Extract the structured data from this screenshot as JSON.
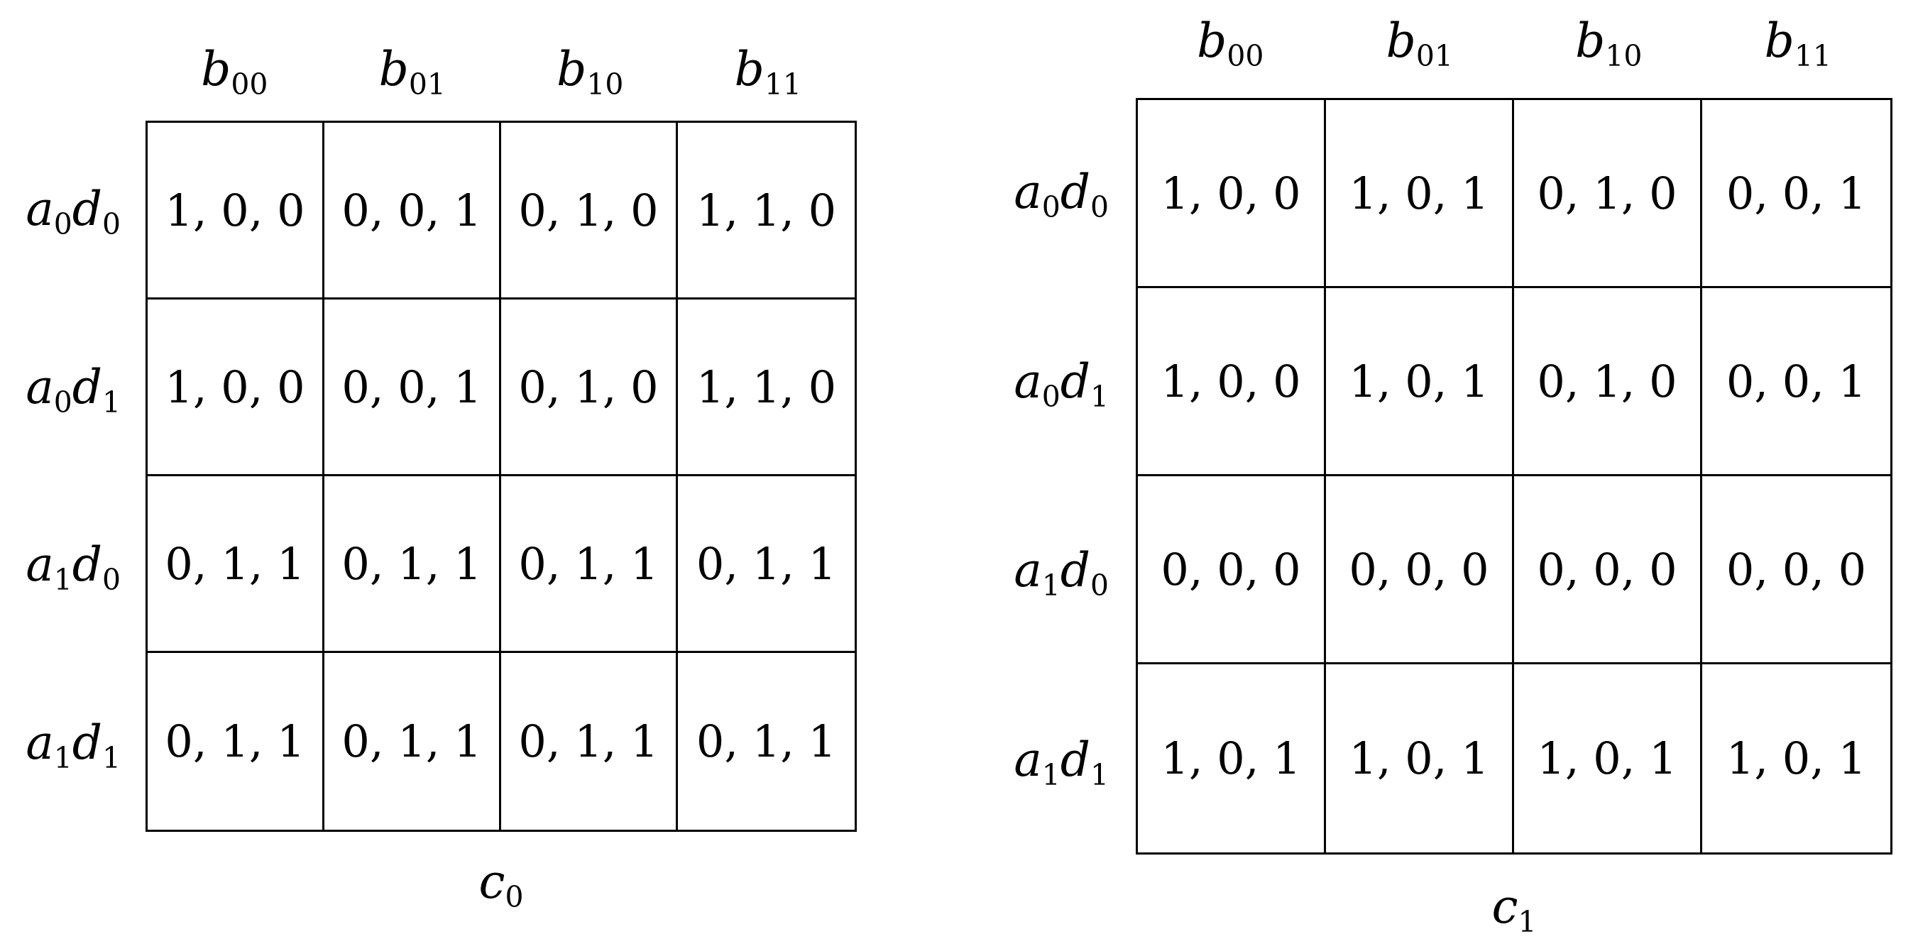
{
  "matrices": [
    {
      "caption": "c",
      "caption_sub": "0",
      "col_headers": [
        {
          "base": "b",
          "sub": "00"
        },
        {
          "base": "b",
          "sub": "01"
        },
        {
          "base": "b",
          "sub": "10"
        },
        {
          "base": "b",
          "sub": "11"
        }
      ],
      "row_headers": [
        {
          "a": "a",
          "a_sub": "0",
          "d": "d",
          "d_sub": "0"
        },
        {
          "a": "a",
          "a_sub": "0",
          "d": "d",
          "d_sub": "1"
        },
        {
          "a": "a",
          "a_sub": "1",
          "d": "d",
          "d_sub": "0"
        },
        {
          "a": "a",
          "a_sub": "1",
          "d": "d",
          "d_sub": "1"
        }
      ],
      "cells": [
        [
          "1, 0, 0",
          "0, 0, 1",
          "0, 1, 0",
          "1, 1, 0"
        ],
        [
          "1, 0, 0",
          "0, 0, 1",
          "0, 1, 0",
          "1, 1, 0"
        ],
        [
          "0, 1, 1",
          "0, 1, 1",
          "0, 1, 1",
          "0, 1, 1"
        ],
        [
          "0, 1, 1",
          "0, 1, 1",
          "0, 1, 1",
          "0, 1, 1"
        ]
      ]
    },
    {
      "caption": "c",
      "caption_sub": "1",
      "col_headers": [
        {
          "base": "b",
          "sub": "00"
        },
        {
          "base": "b",
          "sub": "01"
        },
        {
          "base": "b",
          "sub": "10"
        },
        {
          "base": "b",
          "sub": "11"
        }
      ],
      "row_headers": [
        {
          "a": "a",
          "a_sub": "0",
          "d": "d",
          "d_sub": "0"
        },
        {
          "a": "a",
          "a_sub": "0",
          "d": "d",
          "d_sub": "1"
        },
        {
          "a": "a",
          "a_sub": "1",
          "d": "d",
          "d_sub": "0"
        },
        {
          "a": "a",
          "a_sub": "1",
          "d": "d",
          "d_sub": "1"
        }
      ],
      "cells": [
        [
          "1, 0, 0",
          "1, 0, 1",
          "0, 1, 0",
          "0, 0, 1"
        ],
        [
          "1, 0, 0",
          "1, 0, 1",
          "0, 1, 0",
          "0, 0, 1"
        ],
        [
          "0, 0, 0",
          "0, 0, 0",
          "0, 0, 0",
          "0, 0, 0"
        ],
        [
          "1, 0, 1",
          "1, 0, 1",
          "1, 0, 1",
          "1, 0, 1"
        ]
      ]
    }
  ]
}
